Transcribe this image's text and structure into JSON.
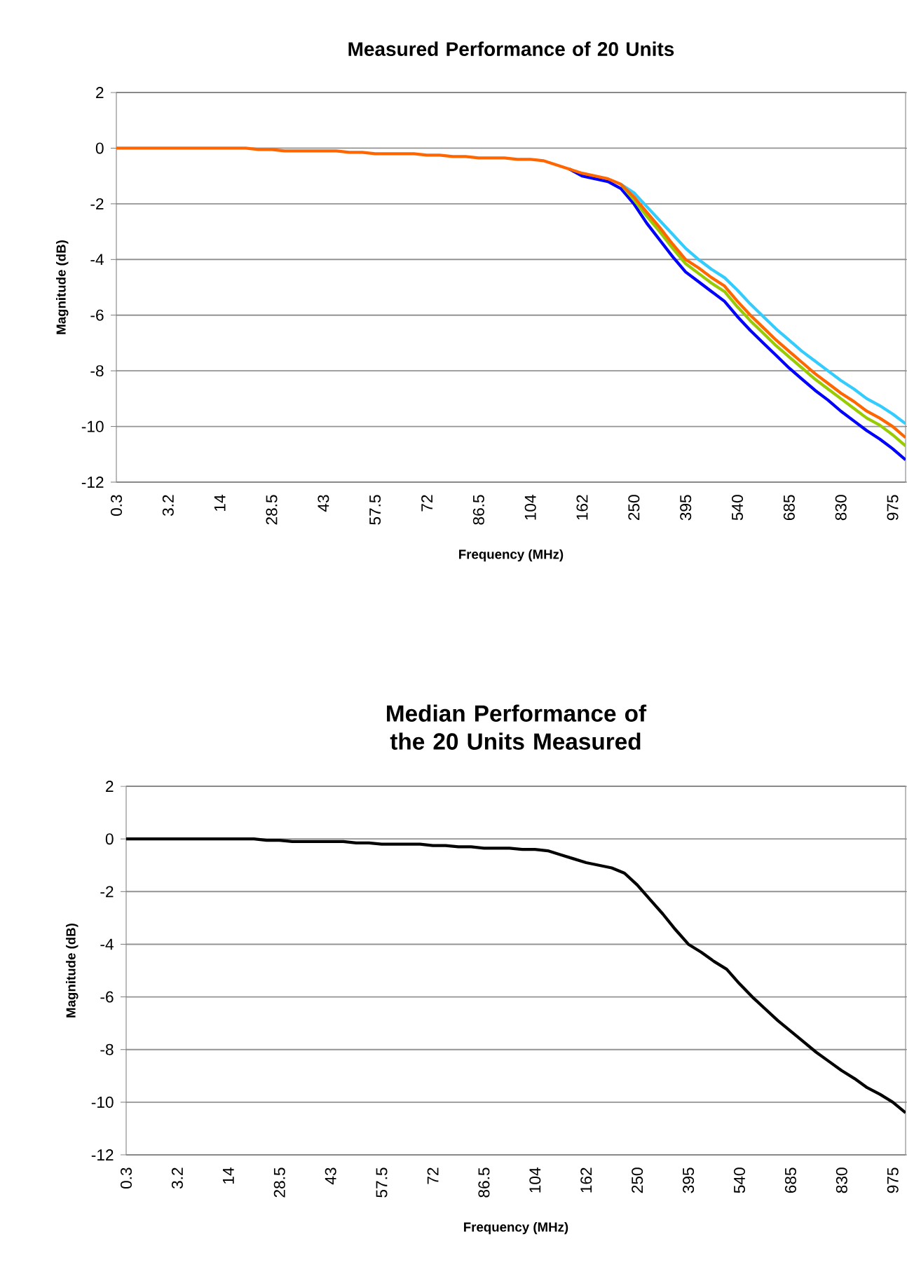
{
  "chart_data": [
    {
      "type": "line",
      "title": "Measured Performance of 20 Units",
      "xlabel": "Frequency (MHz)",
      "ylabel": "Magnitude (dB)",
      "categories": [
        "0.3",
        null,
        null,
        null,
        "3.2",
        null,
        null,
        null,
        "14",
        null,
        null,
        null,
        "28.5",
        null,
        null,
        null,
        "43",
        null,
        null,
        null,
        "57.5",
        null,
        null,
        null,
        "72",
        null,
        null,
        null,
        "86.5",
        null,
        null,
        null,
        "104",
        null,
        null,
        null,
        "162",
        null,
        null,
        null,
        "250",
        null,
        null,
        null,
        "395",
        null,
        null,
        null,
        "540",
        null,
        null,
        null,
        "685",
        null,
        null,
        null,
        "830",
        null,
        null,
        null,
        "975",
        null
      ],
      "series": [
        {
          "color": "#33ccff",
          "values": [
            null,
            null,
            null,
            null,
            null,
            null,
            null,
            null,
            null,
            null,
            null,
            null,
            null,
            null,
            null,
            null,
            null,
            null,
            null,
            null,
            null,
            null,
            null,
            null,
            null,
            null,
            null,
            null,
            null,
            null,
            null,
            null,
            null,
            null,
            null,
            null,
            null,
            null,
            null,
            -1.3,
            -1.6,
            -2.1,
            -2.6,
            -3.1,
            -3.6,
            -4.0,
            -4.35,
            -4.65,
            -5.1,
            -5.6,
            -6.05,
            -6.5,
            -6.9,
            -7.3,
            -7.65,
            -8.0,
            -8.35,
            -8.65,
            -9.0,
            -9.25,
            -9.55,
            -9.9
          ]
        },
        {
          "color": "#0000ff",
          "values": [
            null,
            null,
            null,
            null,
            null,
            null,
            null,
            null,
            null,
            null,
            null,
            null,
            null,
            null,
            null,
            null,
            null,
            null,
            null,
            null,
            null,
            null,
            null,
            null,
            null,
            null,
            null,
            null,
            null,
            null,
            null,
            null,
            null,
            null,
            null,
            -0.75,
            -1.0,
            -1.1,
            -1.2,
            -1.45,
            -2.0,
            -2.7,
            -3.3,
            -3.9,
            -4.45,
            -4.8,
            -5.15,
            -5.5,
            -6.05,
            -6.55,
            -7.0,
            -7.45,
            -7.9,
            -8.3,
            -8.7,
            -9.05,
            -9.45,
            -9.8,
            -10.15,
            -10.45,
            -10.8,
            -11.2
          ]
        },
        {
          "color": "#99cc00",
          "values": [
            null,
            null,
            null,
            null,
            null,
            null,
            null,
            null,
            null,
            null,
            null,
            null,
            null,
            null,
            null,
            null,
            null,
            null,
            null,
            null,
            null,
            null,
            null,
            null,
            null,
            null,
            null,
            null,
            null,
            null,
            null,
            null,
            null,
            null,
            null,
            null,
            null,
            null,
            null,
            -1.3,
            -1.85,
            -2.45,
            -3.0,
            -3.6,
            -4.15,
            -4.5,
            -4.85,
            -5.15,
            -5.7,
            -6.2,
            -6.65,
            -7.1,
            -7.5,
            -7.9,
            -8.3,
            -8.65,
            -9.0,
            -9.35,
            -9.7,
            -9.95,
            -10.3,
            -10.7
          ]
        },
        {
          "color": "#ff6600",
          "values": [
            0,
            0,
            0,
            0,
            0,
            0,
            0,
            0,
            0,
            0,
            0,
            -0.05,
            -0.05,
            -0.1,
            -0.1,
            -0.1,
            -0.1,
            -0.1,
            -0.15,
            -0.15,
            -0.2,
            -0.2,
            -0.2,
            -0.2,
            -0.25,
            -0.25,
            -0.3,
            -0.3,
            -0.35,
            -0.35,
            -0.35,
            -0.4,
            -0.4,
            -0.45,
            -0.6,
            -0.75,
            -0.9,
            -1.0,
            -1.1,
            -1.3,
            -1.75,
            -2.3,
            -2.85,
            -3.45,
            -4.0,
            -4.3,
            -4.65,
            -4.95,
            -5.5,
            -6.0,
            -6.45,
            -6.9,
            -7.3,
            -7.7,
            -8.1,
            -8.45,
            -8.8,
            -9.1,
            -9.45,
            -9.7,
            -10.0,
            -10.4
          ]
        }
      ],
      "ylim": [
        -12,
        2
      ],
      "yticks": [
        -12,
        -10,
        -8,
        -6,
        -4,
        -2,
        0,
        2
      ],
      "grid": "y"
    },
    {
      "type": "line",
      "title": "Median Performance of the 20 Units Measured",
      "xlabel": "Frequency (MHz)",
      "ylabel": "Magnitude (dB)",
      "categories": [
        "0.3",
        null,
        null,
        null,
        "3.2",
        null,
        null,
        null,
        "14",
        null,
        null,
        null,
        "28.5",
        null,
        null,
        null,
        "43",
        null,
        null,
        null,
        "57.5",
        null,
        null,
        null,
        "72",
        null,
        null,
        null,
        "86.5",
        null,
        null,
        null,
        "104",
        null,
        null,
        null,
        "162",
        null,
        null,
        null,
        "250",
        null,
        null,
        null,
        "395",
        null,
        null,
        null,
        "540",
        null,
        null,
        null,
        "685",
        null,
        null,
        null,
        "830",
        null,
        null,
        null,
        "975",
        null
      ],
      "series": [
        {
          "color": "#000000",
          "values": [
            0,
            0,
            0,
            0,
            0,
            0,
            0,
            0,
            0,
            0,
            0,
            -0.05,
            -0.05,
            -0.1,
            -0.1,
            -0.1,
            -0.1,
            -0.1,
            -0.15,
            -0.15,
            -0.2,
            -0.2,
            -0.2,
            -0.2,
            -0.25,
            -0.25,
            -0.3,
            -0.3,
            -0.35,
            -0.35,
            -0.35,
            -0.4,
            -0.4,
            -0.45,
            -0.6,
            -0.75,
            -0.9,
            -1.0,
            -1.1,
            -1.3,
            -1.75,
            -2.3,
            -2.85,
            -3.45,
            -4.0,
            -4.3,
            -4.65,
            -4.95,
            -5.5,
            -6.0,
            -6.45,
            -6.9,
            -7.3,
            -7.7,
            -8.1,
            -8.45,
            -8.8,
            -9.1,
            -9.45,
            -9.7,
            -10.0,
            -10.4
          ]
        }
      ],
      "ylim": [
        -12,
        2
      ],
      "yticks": [
        -12,
        -10,
        -8,
        -6,
        -4,
        -2,
        0,
        2
      ],
      "grid": "y"
    }
  ]
}
